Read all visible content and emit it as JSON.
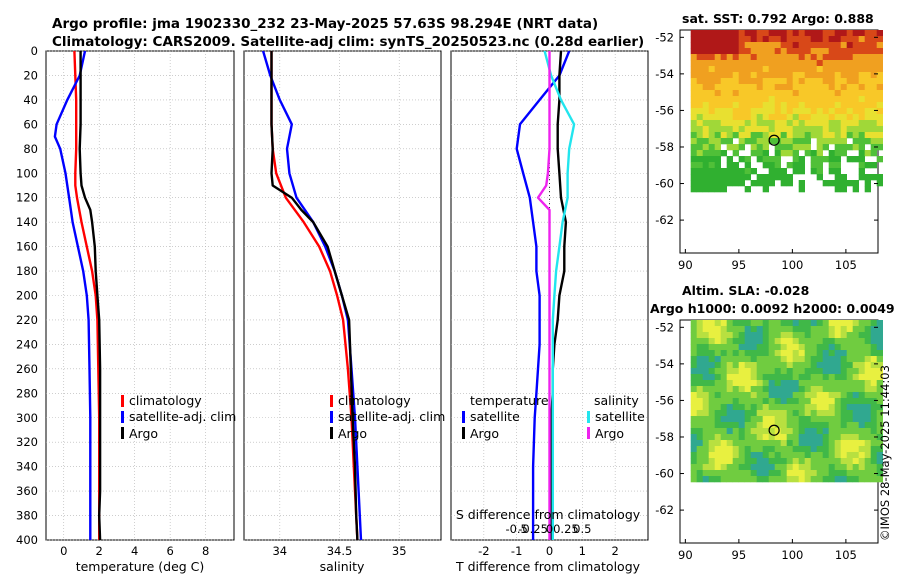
{
  "header": {
    "title_line1": "Argo profile: jma 1902330_232 23-May-2025 57.63S 98.294E (NRT data)",
    "title_line2": "Climatology: CARS2009. Satellite-adj clim: synTS_20250523.nc (0.28d earlier)"
  },
  "colors": {
    "climatology": "#ff0000",
    "satellite_adj": "#0000ff",
    "argo": "#000000",
    "s_satellite": "#22e5ee",
    "s_argo": "#ee22ee"
  },
  "chart_data": [
    {
      "type": "line",
      "name": "temperature-profile",
      "xlabel": "temperature (deg C)",
      "ylabel": "",
      "xlim": [
        -1,
        9.6
      ],
      "ylim": [
        400,
        0
      ],
      "xticks": [
        0,
        2,
        4,
        6,
        8
      ],
      "yticks": [
        0,
        20,
        40,
        60,
        80,
        100,
        120,
        140,
        160,
        180,
        200,
        220,
        240,
        260,
        280,
        300,
        320,
        340,
        360,
        380,
        400
      ],
      "grid": true,
      "legend": [
        "climatology",
        "satellite-adj. clim",
        "Argo"
      ],
      "legend_position": "lower-right",
      "series": [
        {
          "name": "climatology",
          "color": "#ff0000",
          "x": [
            0.6,
            0.65,
            0.7,
            0.7,
            0.7,
            0.65,
            0.65,
            0.75,
            1.0,
            1.3,
            1.6,
            1.8,
            1.9,
            1.95,
            2.0,
            2.0,
            2.0,
            2.0,
            2.0,
            2.0
          ],
          "y": [
            0,
            20,
            40,
            60,
            80,
            100,
            110,
            120,
            140,
            160,
            180,
            200,
            220,
            260,
            300,
            340,
            360,
            380,
            395,
            400
          ]
        },
        {
          "name": "satellite-adj. clim",
          "color": "#0000ff",
          "x": [
            1.2,
            0.9,
            0.2,
            -0.4,
            -0.5,
            -0.2,
            0.1,
            0.3,
            0.5,
            0.8,
            1.1,
            1.3,
            1.4,
            1.45,
            1.5,
            1.5,
            1.5,
            1.5,
            1.5,
            1.5
          ],
          "y": [
            0,
            20,
            40,
            60,
            70,
            80,
            100,
            120,
            140,
            160,
            180,
            200,
            220,
            260,
            300,
            340,
            360,
            380,
            395,
            400
          ]
        },
        {
          "name": "Argo",
          "color": "#000000",
          "x": [
            0.95,
            0.95,
            0.95,
            0.95,
            0.9,
            0.95,
            1.0,
            1.2,
            1.5,
            1.6,
            1.75,
            1.8,
            1.9,
            2.0,
            2.05,
            2.05,
            2.05,
            2.05,
            2.0,
            2.05
          ],
          "y": [
            0,
            20,
            40,
            60,
            80,
            100,
            110,
            120,
            130,
            140,
            160,
            180,
            200,
            220,
            260,
            300,
            340,
            360,
            380,
            400
          ]
        }
      ]
    },
    {
      "type": "line",
      "name": "salinity-profile",
      "xlabel": "salinity",
      "xlim": [
        33.7,
        35.35
      ],
      "ylim": [
        400,
        0
      ],
      "xticks": [
        34,
        34.5,
        35
      ],
      "grid": true,
      "legend": [
        "climatology",
        "satellite-adj. clim",
        "Argo"
      ],
      "legend_position": "lower-right",
      "series": [
        {
          "name": "climatology",
          "color": "#ff0000",
          "x": [
            33.93,
            33.93,
            33.93,
            33.93,
            33.94,
            33.97,
            34.05,
            34.2,
            34.33,
            34.42,
            34.48,
            34.53,
            34.57,
            34.6,
            34.62,
            34.63,
            34.64,
            34.65
          ],
          "y": [
            0,
            20,
            40,
            60,
            80,
            100,
            120,
            140,
            160,
            180,
            200,
            220,
            260,
            300,
            340,
            360,
            380,
            400
          ]
        },
        {
          "name": "satellite-adj. clim",
          "color": "#0000ff",
          "x": [
            33.86,
            33.92,
            34.0,
            34.1,
            34.06,
            34.08,
            34.14,
            34.28,
            34.38,
            34.46,
            34.52,
            34.57,
            34.6,
            34.63,
            34.65,
            34.66,
            34.67,
            34.68
          ],
          "y": [
            0,
            20,
            40,
            60,
            80,
            100,
            120,
            140,
            160,
            180,
            200,
            220,
            260,
            300,
            340,
            360,
            380,
            400
          ]
        },
        {
          "name": "Argo",
          "color": "#000000",
          "x": [
            33.93,
            33.93,
            33.93,
            33.93,
            33.94,
            33.93,
            33.94,
            34.1,
            34.18,
            34.28,
            34.4,
            34.46,
            34.52,
            34.58,
            34.61,
            34.63,
            34.64,
            34.65
          ],
          "y": [
            0,
            20,
            40,
            60,
            80,
            100,
            110,
            120,
            130,
            140,
            160,
            180,
            200,
            220,
            300,
            340,
            380,
            400
          ]
        }
      ]
    },
    {
      "type": "line",
      "name": "difference-from-climatology",
      "xlabel": "T difference from climatology",
      "xlabel_top": "S difference from climatology",
      "xlim": [
        -3,
        3
      ],
      "ylim": [
        400,
        0
      ],
      "xticks": [
        -2,
        -1,
        0,
        1,
        2
      ],
      "xtick_labels": [
        "-2",
        "-1",
        "0",
        "1",
        "2"
      ],
      "s_xticks": [
        -1,
        -0.5,
        0,
        0.5,
        1
      ],
      "s_xtick_labels": [
        "-0.5",
        "-0.25",
        "0",
        "0.25",
        "0.5"
      ],
      "grid": true,
      "legend": [
        "temperature",
        "satellite",
        "Argo",
        "salinity",
        "satellite",
        "Argo"
      ],
      "series": [
        {
          "name": "temperature satellite",
          "color": "#0000ff",
          "x": [
            0.6,
            0.3,
            -0.3,
            -0.9,
            -1.0,
            -0.8,
            -0.6,
            -0.5,
            -0.4,
            -0.4,
            -0.3,
            -0.3,
            -0.3,
            -0.35,
            -0.4,
            -0.45,
            -0.5,
            -0.5,
            -0.5,
            -0.5
          ],
          "y": [
            0,
            20,
            40,
            60,
            80,
            100,
            120,
            140,
            160,
            180,
            200,
            220,
            240,
            260,
            280,
            300,
            340,
            360,
            380,
            400
          ]
        },
        {
          "name": "temperature Argo",
          "color": "#000000",
          "x": [
            0.35,
            0.3,
            0.3,
            0.25,
            0.25,
            0.3,
            0.35,
            0.5,
            0.45,
            0.45,
            0.3,
            0.25,
            0.15,
            0.1,
            0.1,
            0.05,
            0.05,
            0.05,
            0.05,
            0.05
          ],
          "y": [
            0,
            20,
            40,
            60,
            80,
            100,
            120,
            140,
            160,
            180,
            200,
            220,
            240,
            260,
            280,
            300,
            340,
            360,
            380,
            400
          ]
        },
        {
          "name": "salinity satellite",
          "color": "#22e5ee",
          "x": [
            -0.15,
            0.05,
            0.35,
            0.75,
            0.6,
            0.55,
            0.55,
            0.4,
            0.3,
            0.2,
            0.15,
            0.1,
            0.1,
            0.1,
            0.1,
            0.1,
            0.1,
            0.1
          ],
          "y": [
            0,
            20,
            40,
            60,
            80,
            100,
            120,
            140,
            160,
            180,
            200,
            220,
            260,
            300,
            340,
            360,
            380,
            400
          ]
        },
        {
          "name": "salinity Argo",
          "color": "#ee22ee",
          "x": [
            0,
            0,
            0,
            0,
            0,
            -0.05,
            -0.1,
            -0.35,
            0,
            0,
            0,
            0,
            0,
            0,
            0,
            0,
            0,
            0
          ],
          "y": [
            0,
            20,
            40,
            60,
            80,
            100,
            110,
            120,
            130,
            140,
            160,
            200,
            260,
            300,
            340,
            360,
            380,
            400
          ]
        }
      ]
    },
    {
      "type": "heatmap",
      "name": "satellite-sst-map",
      "title": "sat. SST: 0.792 Argo: 0.888",
      "xlim": [
        89.5,
        108
      ],
      "ylim": [
        -63.8,
        -51.6
      ],
      "xticks": [
        90,
        95,
        100,
        105
      ],
      "yticks": [
        -52,
        -54,
        -56,
        -58,
        -60,
        -62
      ],
      "marker": {
        "lon": 98.294,
        "lat": -57.63
      }
    },
    {
      "type": "heatmap",
      "name": "altimetry-sla-map",
      "title": "Altim. SLA: -0.028",
      "subtitle": "Argo h1000: 0.0092 h2000: 0.0049",
      "xlim": [
        89.5,
        108
      ],
      "ylim": [
        -63.8,
        -51.6
      ],
      "xticks": [
        90,
        95,
        100,
        105
      ],
      "yticks": [
        -52,
        -54,
        -56,
        -58,
        -60,
        -62
      ],
      "marker": {
        "lon": 98.294,
        "lat": -57.63
      }
    }
  ],
  "legend_text": {
    "climatology": "climatology",
    "satellite_adj": "satellite-adj. clim",
    "argo": "Argo",
    "temperature": "temperature",
    "salinity": "salinity",
    "satellite": "satellite"
  },
  "credit": "©IMOS 28-May-2025 11:44:03"
}
